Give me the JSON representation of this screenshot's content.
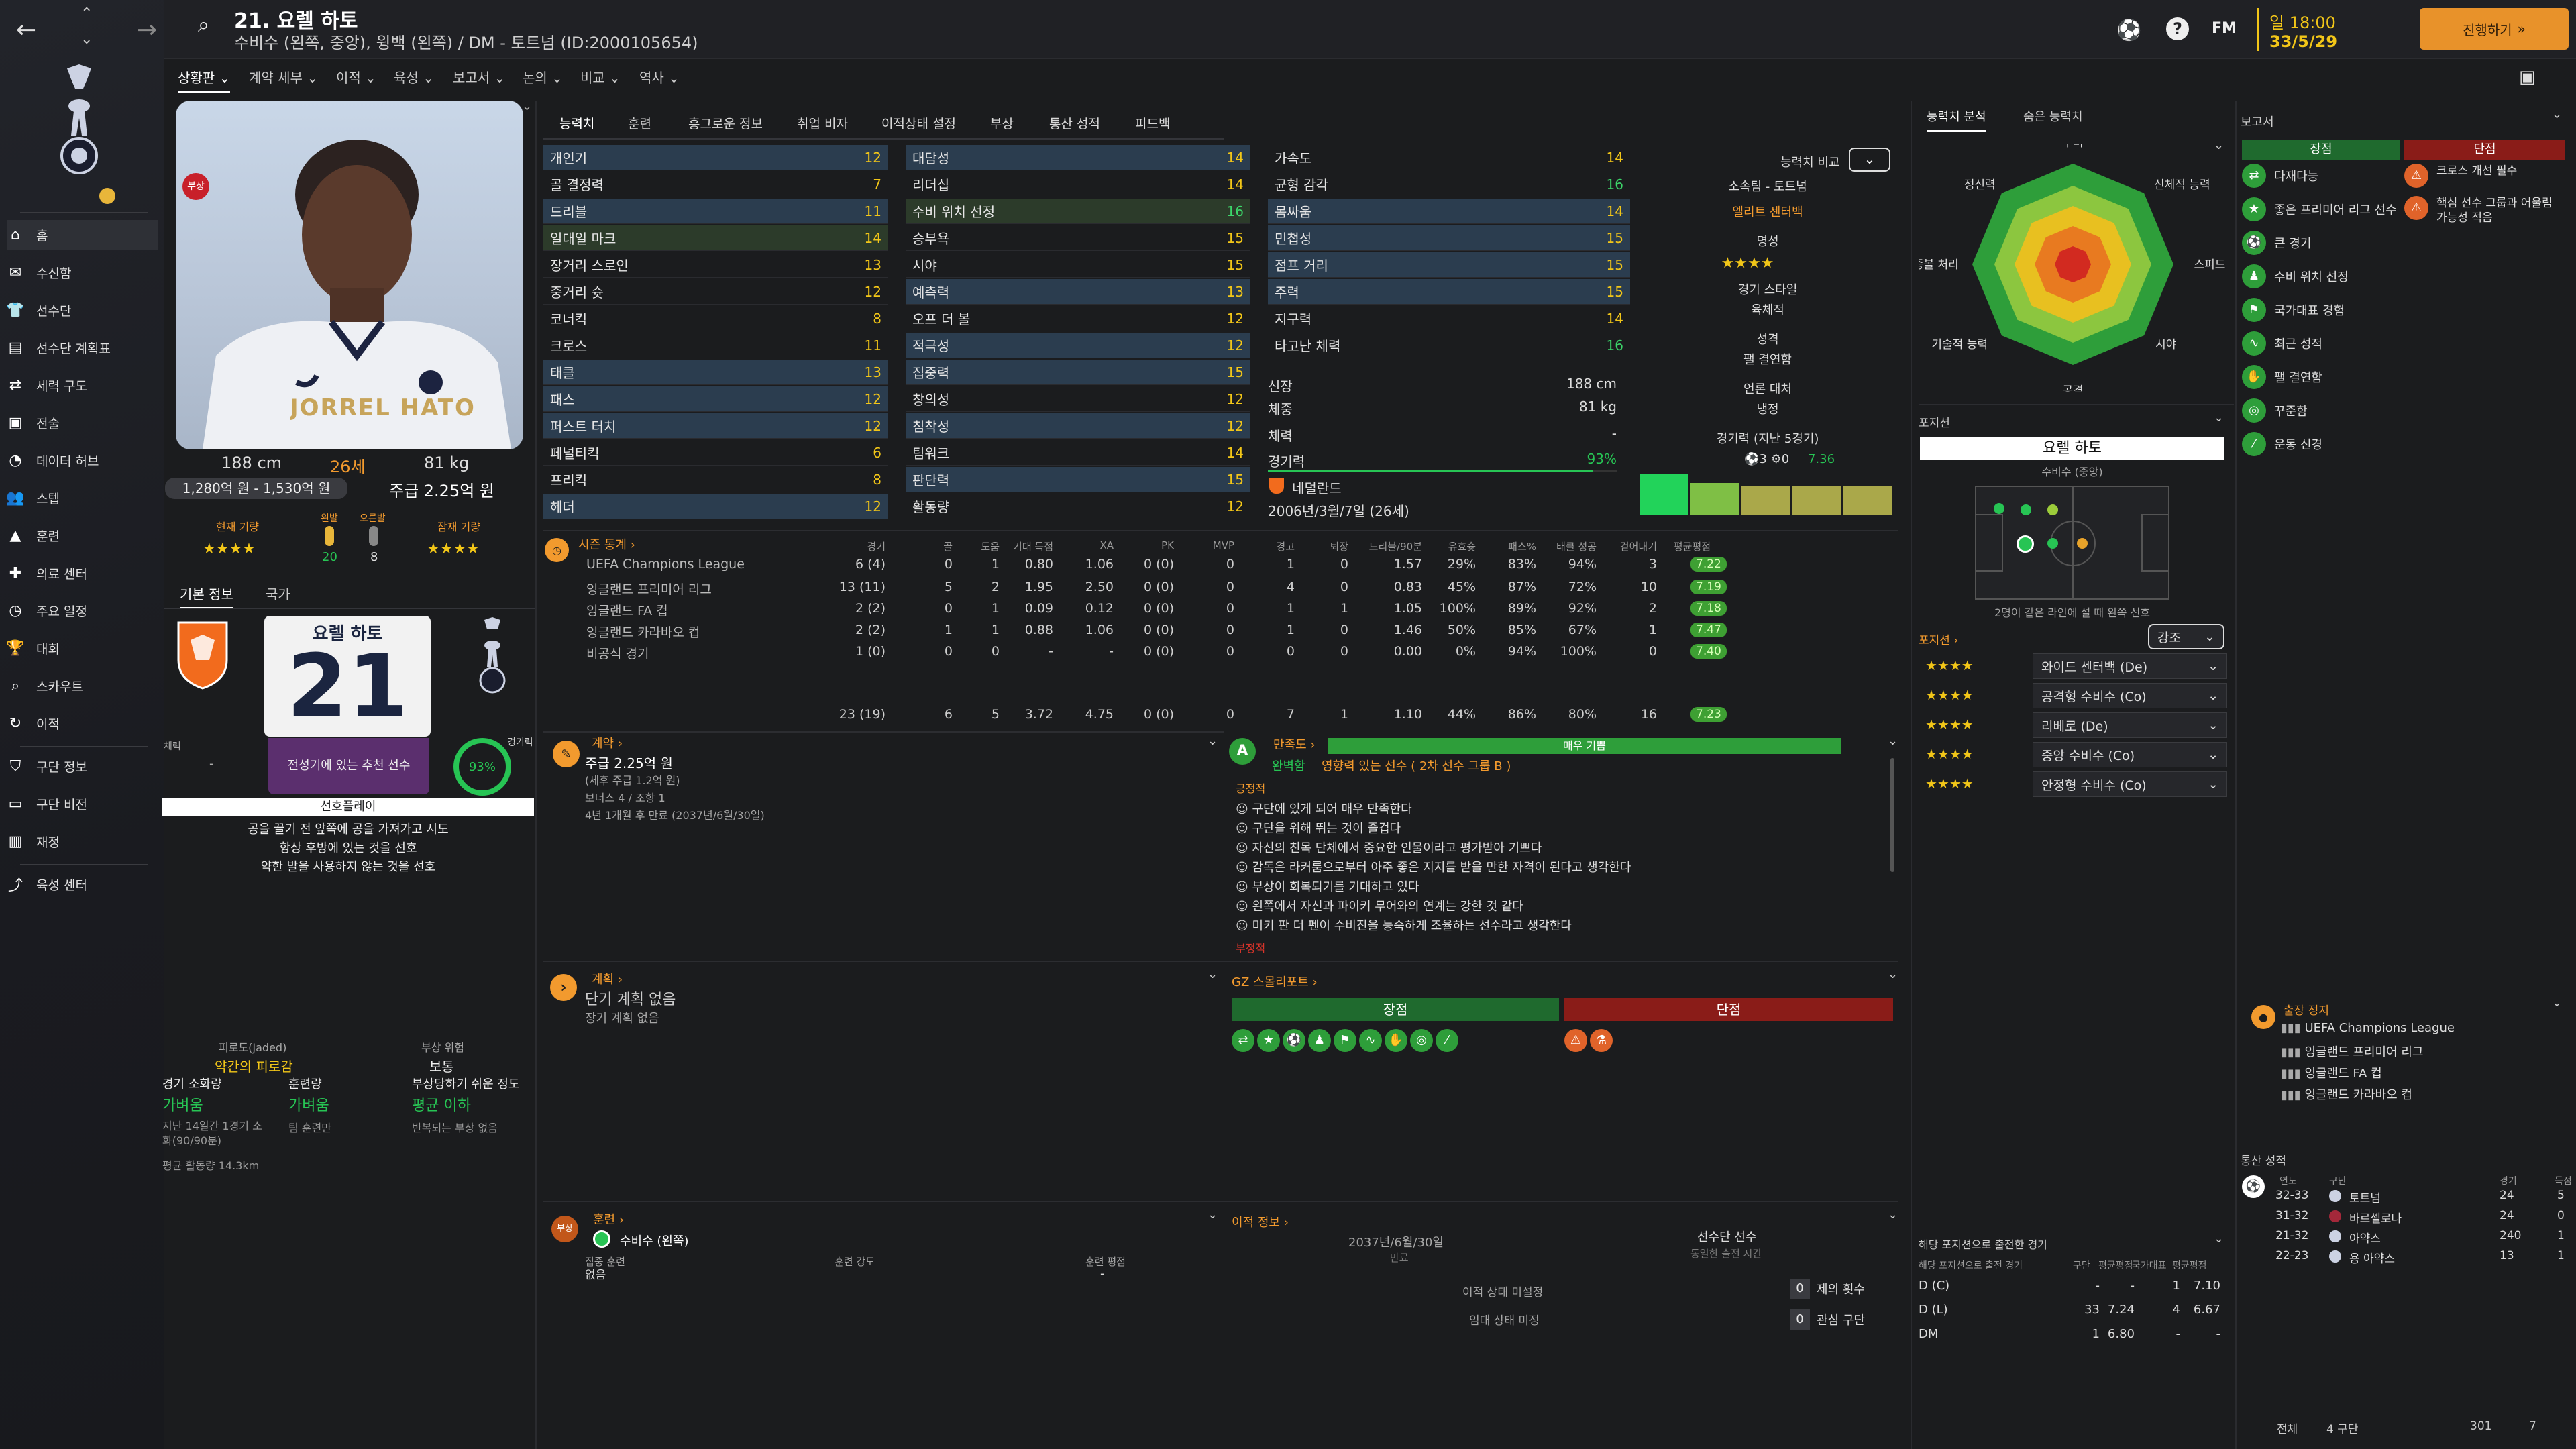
{
  "header": {
    "title": "21. 요렐 하토",
    "subtitle": "수비수 (왼쪽, 중앙), 윙백 (왼쪽) / DM - 토트넘 (ID:2000105654)",
    "time": "일 18:00",
    "date": "33/5/29",
    "continue_label": "진행하기"
  },
  "subnav": [
    "상황판",
    "계약 세부",
    "이적",
    "육성",
    "보고서",
    "논의",
    "비교",
    "역사"
  ],
  "sidebar": {
    "items": [
      {
        "label": "홈",
        "icon": "home-icon"
      },
      {
        "label": "수신함",
        "icon": "inbox-icon"
      },
      {
        "label": "선수단",
        "icon": "squad-icon"
      },
      {
        "label": "선수단 계획표",
        "icon": "squad-planner-icon"
      },
      {
        "label": "세력 구도",
        "icon": "dynamics-icon"
      },
      {
        "label": "전술",
        "icon": "tactics-icon"
      },
      {
        "label": "데이터 허브",
        "icon": "data-hub-icon"
      },
      {
        "label": "스텝",
        "icon": "staff-icon"
      },
      {
        "label": "훈련",
        "icon": "training-icon"
      },
      {
        "label": "의료 센터",
        "icon": "medical-icon"
      },
      {
        "label": "주요 일정",
        "icon": "calendar-icon"
      },
      {
        "label": "대회",
        "icon": "trophy-icon"
      },
      {
        "label": "스카우트",
        "icon": "scouting-icon"
      },
      {
        "label": "이적",
        "icon": "transfers-icon"
      },
      {
        "label": "구단 정보",
        "icon": "club-info-icon"
      },
      {
        "label": "구단 비전",
        "icon": "club-vision-icon"
      },
      {
        "label": "재정",
        "icon": "finances-icon"
      },
      {
        "label": "육성 센터",
        "icon": "development-icon"
      }
    ]
  },
  "profile": {
    "shirt_text": "JORREL HATO",
    "height": "188 cm",
    "age": "26세",
    "weight": "81 kg",
    "value": "1,280억 원 - 1,530억 원",
    "wage": "주급 2.25억 원",
    "current_ability_label": "현재 기량",
    "ability_stars": "★★★★",
    "left_foot_label": "왼발",
    "left_foot_value": "20",
    "right_foot_label": "오른발",
    "right_foot_value": "8",
    "potential_label": "잠재 기량",
    "potential_stars": "★★★★",
    "tab_basic": "기본 정보",
    "tab_nation": "국가",
    "card_name": "요렐 하토",
    "card_number": "21",
    "fitness_label": "경기력",
    "fitness_value": "93%",
    "condition_label": "체력",
    "condition_value": "-",
    "recommend": "전성기에 있는 추천 선수",
    "prefs_title": "선호플레이",
    "prefs": [
      "공을 끌기 전 앞쪽에 공을 가져가고 시도",
      "항상 후방에 있는 것을 선호",
      "약한 발을 사용하지 않는 것을 선호"
    ],
    "fatigue_label": "피로도(Jaded)",
    "fatigue_value": "약간의 피로감",
    "injury_risk_label": "부상 위험",
    "injury_risk_value": "보통",
    "match_load_label": "경기 소화량",
    "match_load_value": "가벼움",
    "training_load_label": "훈련량",
    "training_load_value": "가벼움",
    "injury_prone_label": "부상당하기 쉬운 정도",
    "injury_prone_value": "평균 이하",
    "match_note": "지난 14일간 1경기 소화(90/90분)",
    "team_note": "팀 훈련만",
    "injury_note": "반복되는 부상 없음",
    "distance_note": "평균 활동량 14.3km"
  },
  "tabs": [
    "능력치",
    "훈련",
    "흥그로운 정보",
    "취업 비자",
    "이적상태 설정",
    "부상",
    "통산 성적",
    "피드백"
  ],
  "attributes": {
    "technical": [
      {
        "name": "개인기",
        "value": "12",
        "hl": true
      },
      {
        "name": "골 결정력",
        "value": "7"
      },
      {
        "name": "드리블",
        "value": "11",
        "hl": true
      },
      {
        "name": "일대일 마크",
        "value": "14",
        "g": true
      },
      {
        "name": "장거리 스로인",
        "value": "13"
      },
      {
        "name": "중거리 슛",
        "value": "12"
      },
      {
        "name": "코너킥",
        "value": "8"
      },
      {
        "name": "크로스",
        "value": "11"
      },
      {
        "name": "태클",
        "value": "13",
        "hl": true
      },
      {
        "name": "패스",
        "value": "12",
        "hl": true
      },
      {
        "name": "퍼스트 터치",
        "value": "12",
        "hl": true
      },
      {
        "name": "페널티킥",
        "value": "6"
      },
      {
        "name": "프리킥",
        "value": "8"
      },
      {
        "name": "헤더",
        "value": "12",
        "hl": true
      }
    ],
    "mental": [
      {
        "name": "대담성",
        "value": "14",
        "hl": true
      },
      {
        "name": "리더십",
        "value": "14"
      },
      {
        "name": "수비 위치 선정",
        "value": "16",
        "g": true
      },
      {
        "name": "승부욕",
        "value": "15"
      },
      {
        "name": "시야",
        "value": "15"
      },
      {
        "name": "예측력",
        "value": "13",
        "hl": true
      },
      {
        "name": "오프 더 볼",
        "value": "12"
      },
      {
        "name": "적극성",
        "value": "12",
        "hl": true
      },
      {
        "name": "집중력",
        "value": "15",
        "hl": true
      },
      {
        "name": "창의성",
        "value": "12"
      },
      {
        "name": "침착성",
        "value": "12",
        "hl": true
      },
      {
        "name": "팀워크",
        "value": "14"
      },
      {
        "name": "판단력",
        "value": "15",
        "hl": true
      },
      {
        "name": "활동량",
        "value": "12"
      }
    ],
    "physical": [
      {
        "name": "가속도",
        "value": "14"
      },
      {
        "name": "균형 감각",
        "value": "16"
      },
      {
        "name": "몸싸움",
        "value": "14",
        "hl": true
      },
      {
        "name": "민첩성",
        "value": "15",
        "hl": true
      },
      {
        "name": "점프 거리",
        "value": "15",
        "hl": true
      },
      {
        "name": "주력",
        "value": "15",
        "hl": true
      },
      {
        "name": "지구력",
        "value": "14"
      },
      {
        "name": "타고난 체력",
        "value": "16"
      }
    ],
    "info": {
      "height_label": "신장",
      "height": "188 cm",
      "weight_label": "체중",
      "weight": "81 kg",
      "cond_label": "체력",
      "cond": "-",
      "fit_label": "경기력",
      "fit": "93%",
      "nation": "네덜란드",
      "dob": "2006년/3월/7일 (26세)"
    }
  },
  "compare": {
    "label": "능력치 비교",
    "club_label": "소속팀 - 토트넘",
    "role": "엘리트 센터백",
    "rep_label": "명성",
    "rep_stars": "★★★★",
    "style_label": "경기 스타일",
    "style": "육체적",
    "personality_label": "성격",
    "personality": "팰 결연함",
    "media_label": "언론 대처",
    "media": "냉정",
    "form_label": "경기력 (지난 5경기)",
    "form_goals": "3",
    "form_assists": "0",
    "form_rating": "7.36"
  },
  "season": {
    "title": "시즌 통계",
    "headers": [
      "경기",
      "골",
      "도움",
      "기대 득점",
      "XA",
      "PK",
      "MVP",
      "경고",
      "퇴장",
      "드리블/90분",
      "유효슛",
      "패스%",
      "태클 성공",
      "걷어내기",
      "평균평점"
    ],
    "rows": [
      {
        "comp": "UEFA Champions League",
        "vals": [
          "6 (4)",
          "0",
          "1",
          "0.80",
          "1.06",
          "0 (0)",
          "0",
          "1",
          "0",
          "1.57",
          "29%",
          "83%",
          "94%",
          "3"
        ],
        "rating": "7.22"
      },
      {
        "comp": "잉글랜드 프리미어 리그",
        "vals": [
          "13 (11)",
          "5",
          "2",
          "1.95",
          "2.50",
          "0 (0)",
          "0",
          "4",
          "0",
          "0.83",
          "45%",
          "87%",
          "72%",
          "10"
        ],
        "rating": "7.19"
      },
      {
        "comp": "잉글랜드 FA 컵",
        "vals": [
          "2 (2)",
          "0",
          "1",
          "0.09",
          "0.12",
          "0 (0)",
          "0",
          "1",
          "1",
          "1.05",
          "100%",
          "89%",
          "92%",
          "2"
        ],
        "rating": "7.18"
      },
      {
        "comp": "잉글랜드 카라바오 컵",
        "vals": [
          "2 (2)",
          "1",
          "1",
          "0.88",
          "1.06",
          "0 (0)",
          "0",
          "1",
          "0",
          "1.46",
          "50%",
          "85%",
          "67%",
          "1"
        ],
        "rating": "7.47"
      },
      {
        "comp": "비공식 경기",
        "vals": [
          "1 (0)",
          "0",
          "0",
          "-",
          "-",
          "0 (0)",
          "0",
          "0",
          "0",
          "0.00",
          "0%",
          "94%",
          "100%",
          "0"
        ],
        "rating": "7.40"
      }
    ],
    "total": {
      "vals": [
        "23 (19)",
        "6",
        "5",
        "3.72",
        "4.75",
        "0 (0)",
        "0",
        "7",
        "1",
        "1.10",
        "44%",
        "86%",
        "80%",
        "16"
      ],
      "rating": "7.23"
    }
  },
  "contract": {
    "title": "계약",
    "wage": "주급 2.25억 원",
    "wage_note": "(세후 주급 1.2억 원)",
    "bonus": "보너스 4 / 조항 1",
    "expiry": "4년 1개월 후 만료 (2037년/6월/30일)"
  },
  "happiness": {
    "title": "만족도",
    "level": "매우 기쁨",
    "status": "완벽함",
    "status_note": "영향력 있는 선수 ( 2차 선수 그룹 B )",
    "positive_label": "긍정적",
    "items": [
      "구단에 있게 되어 매우 만족한다",
      "구단을 위해 뛰는 것이 즐겁다",
      "자신의 친목 단체에서 중요한 인물이라고 평가받아 기쁘다",
      "감독은 라커룸으로부터 아주 좋은 지지를 받을 만한 자격이 된다고 생각한다",
      "부상이 회복되기를 기대하고 있다",
      "왼쪽에서 자신과 파이키 무어와의 연계는 강한 것 같다",
      "미키 판 더 펜이 수비진을 능숙하게 조율하는 선수라고 생각한다"
    ],
    "negative_label": "부정적"
  },
  "plan": {
    "title": "계획",
    "short": "단기 계획 없음",
    "long": "장기 계획 없음"
  },
  "gz_report": {
    "title": "GZ 스몰리포트",
    "strengths": "장점",
    "weaknesses": "단점"
  },
  "training": {
    "title": "훈련",
    "role": "수비수 (왼쪽)",
    "focus_label": "집중 훈련",
    "focus_value": "없음",
    "intensity_label": "훈련 강도",
    "rating_label": "훈련 평점",
    "rating_value": "-"
  },
  "transfer": {
    "title": "이적 정보",
    "expiry_date": "2037년/6월/30일",
    "expiry_label": "만료",
    "squad_status": "선수단 선수",
    "squad_note": "동일한 출전 시간",
    "transfer_status": "이적 상태 미설정",
    "loan_status": "임대 상태 미정",
    "offers_value": "0",
    "offers_label": "제의 횟수",
    "interest_value": "0",
    "interest_label": "관심 구단"
  },
  "analysis": {
    "tabs": [
      "능력치 분석",
      "숨은 능력치"
    ],
    "labels": [
      "수비",
      "신체적 능력",
      "스피드",
      "시야",
      "공격",
      "기술적 능력",
      "공중볼 처리",
      "정신력"
    ]
  },
  "position": {
    "title": "포지션",
    "name": "요렐 하토",
    "role": "수비수 (중앙)",
    "note": "2명이 같은 라인에 설 때 왼쪽 선호",
    "roles_title": "포지션",
    "roles_filter": "강조",
    "roles": [
      {
        "stars": "★★★★",
        "name": "와이드 센터백 (De)"
      },
      {
        "stars": "★★★★",
        "name": "공격형 수비수 (Co)"
      },
      {
        "stars": "★★★★",
        "name": "리베로 (De)"
      },
      {
        "stars": "★★★★",
        "name": "중앙 수비수 (Co)"
      },
      {
        "stars": "★★★★",
        "name": "안정형 수비수 (Co)"
      }
    ]
  },
  "pos_games": {
    "title": "해당 포지션으로 출전한 경기",
    "headers": [
      "해당 포지션으로 출전 경기",
      "구단",
      "평균평점",
      "국가대표",
      "평균평점"
    ],
    "rows": [
      {
        "pos": "D (C)",
        "c": "-",
        "cr": "-",
        "n": "1",
        "nr": "7.10"
      },
      {
        "pos": "D (L)",
        "c": "33",
        "cr": "7.24",
        "n": "4",
        "nr": "6.67"
      },
      {
        "pos": "DM",
        "c": "1",
        "cr": "6.80",
        "n": "-",
        "nr": "-"
      }
    ]
  },
  "report": {
    "title": "보고서",
    "strengths_label": "장점",
    "weaknesses_label": "단점",
    "strengths": [
      "다재다능",
      "좋은 프리미어 리그 선수",
      "큰 경기",
      "수비 위치 선정",
      "국가대표 경험",
      "최근 성적",
      "팰 결연함",
      "꾸준함",
      "운동 신경"
    ],
    "weaknesses": [
      "크로스 개선 필수",
      "핵심 선수 그룹과 어울림 가능성 적음"
    ]
  },
  "suspension": {
    "title": "출장 정지",
    "items": [
      "UEFA Champions League",
      "잉글랜드 프리미어 리그",
      "잉글랜드 FA 컵",
      "잉글랜드 카라바오 컵"
    ]
  },
  "career": {
    "title": "통산 성적",
    "headers": [
      "연도",
      "구단",
      "경기",
      "득점"
    ],
    "rows": [
      {
        "year": "32-33",
        "club": "토트넘",
        "apps": "24",
        "goals": "5"
      },
      {
        "year": "31-32",
        "club": "바르셀로나",
        "apps": "24",
        "goals": "0"
      },
      {
        "year": "21-32",
        "club": "아약스",
        "apps": "240",
        "goals": "1"
      },
      {
        "year": "22-23",
        "club": "용 아약스",
        "apps": "13",
        "goals": "1"
      }
    ],
    "total_label": "전체",
    "total_clubs": "4 구단",
    "total_apps": "301",
    "total_goals": "7"
  },
  "colors": {
    "accent": "#f29a2e",
    "positive": "#2e9e3a",
    "negative": "#b3201d",
    "highlight": "#f2c618"
  }
}
